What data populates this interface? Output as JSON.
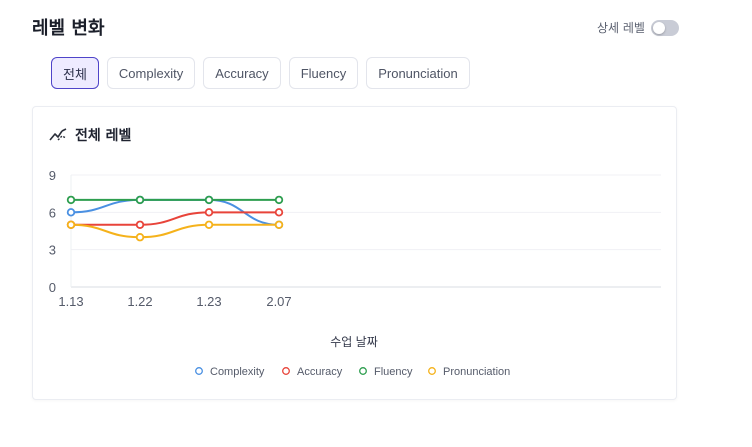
{
  "header": {
    "title": "레벨 변화",
    "detail_label": "상세 레벨",
    "detail_toggle_on": false
  },
  "tabs": [
    {
      "label": "전체",
      "active": true
    },
    {
      "label": "Complexity",
      "active": false
    },
    {
      "label": "Accuracy",
      "active": false
    },
    {
      "label": "Fluency",
      "active": false
    },
    {
      "label": "Pronunciation",
      "active": false
    }
  ],
  "card": {
    "title": "전체 레벨",
    "icon": "trend-line-icon"
  },
  "chart_data": {
    "type": "line",
    "categories": [
      "1.13",
      "1.22",
      "1.23",
      "2.07"
    ],
    "xlabel": "수업 날짜",
    "ylabel": "",
    "ylim": [
      0,
      9
    ],
    "yticks": [
      0,
      3,
      6,
      9
    ],
    "grid": true,
    "legend": "bottom",
    "series": [
      {
        "name": "Complexity",
        "color": "#4a90e2",
        "values": [
          6,
          7,
          7,
          5
        ]
      },
      {
        "name": "Accuracy",
        "color": "#e8443a",
        "values": [
          5,
          5,
          6,
          6
        ]
      },
      {
        "name": "Fluency",
        "color": "#2e9e4f",
        "values": [
          7,
          7,
          7,
          7
        ]
      },
      {
        "name": "Pronunciation",
        "color": "#f5b21b",
        "values": [
          5,
          4,
          5,
          5
        ]
      }
    ]
  }
}
